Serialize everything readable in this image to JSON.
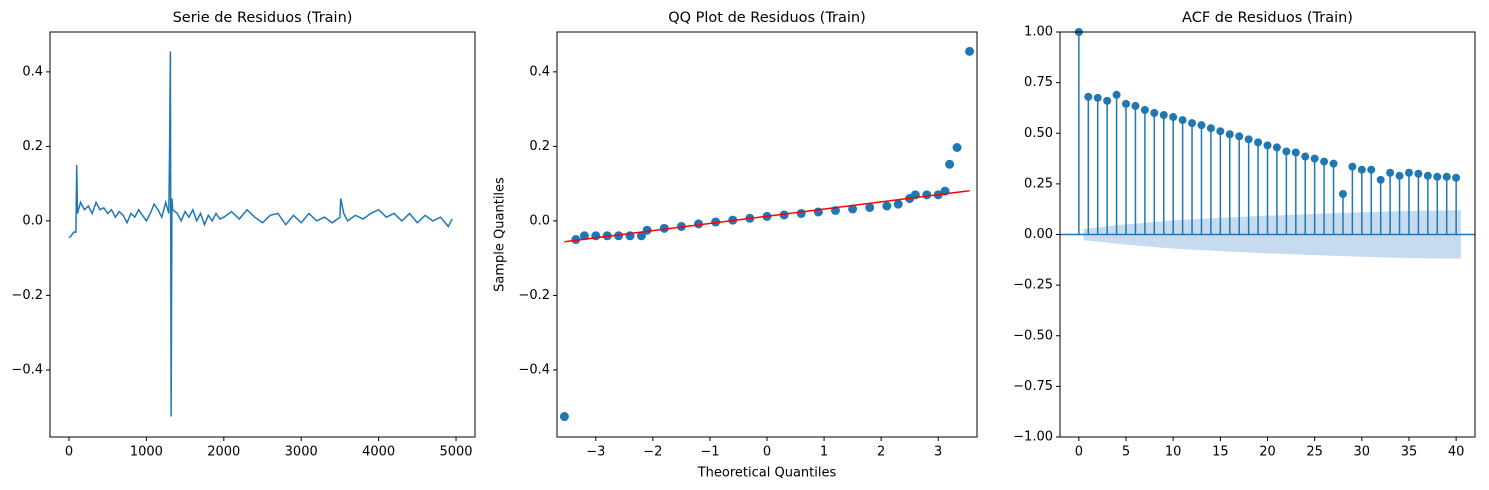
{
  "chart_data": [
    {
      "type": "line",
      "title": "Serie de Residuos (Train)",
      "color": "#1f77b4",
      "x": [
        0,
        30,
        60,
        90,
        100,
        110,
        150,
        200,
        250,
        300,
        350,
        400,
        450,
        500,
        550,
        600,
        650,
        700,
        750,
        800,
        850,
        900,
        950,
        1000,
        1050,
        1100,
        1150,
        1200,
        1250,
        1290,
        1300,
        1310,
        1320,
        1330,
        1340,
        1400,
        1450,
        1500,
        1550,
        1600,
        1650,
        1700,
        1750,
        1800,
        1850,
        1900,
        1950,
        2000,
        2100,
        2200,
        2300,
        2400,
        2500,
        2600,
        2700,
        2800,
        2900,
        3000,
        3100,
        3200,
        3300,
        3400,
        3500,
        3510,
        3550,
        3600,
        3700,
        3800,
        3900,
        4000,
        4100,
        4200,
        4300,
        4400,
        4500,
        4600,
        4700,
        4800,
        4900,
        4950
      ],
      "values": [
        -0.045,
        -0.04,
        -0.03,
        -0.03,
        0.15,
        0.02,
        0.05,
        0.03,
        0.04,
        0.02,
        0.05,
        0.03,
        0.035,
        0.02,
        0.03,
        0.01,
        0.025,
        0.015,
        -0.005,
        0.02,
        0.01,
        0.03,
        0.015,
        0,
        0.02,
        0.045,
        0.03,
        0.01,
        0.05,
        0.02,
        0.2,
        0.455,
        -0.525,
        0.06,
        0.03,
        0.02,
        0,
        0.025,
        0.01,
        0.03,
        0,
        0.02,
        -0.01,
        0.015,
        0,
        0.02,
        0.005,
        0.01,
        0.025,
        0.005,
        0.03,
        0.01,
        -0.005,
        0.015,
        0.02,
        -0.01,
        0.015,
        -0.005,
        0.02,
        0,
        0.01,
        -0.005,
        0.01,
        0.06,
        0.02,
        0,
        0.015,
        0.005,
        0.02,
        0.03,
        0.01,
        0.02,
        0,
        0.02,
        -0.005,
        0.015,
        0,
        0.01,
        -0.015,
        0.005
      ],
      "xlim": [
        -245,
        5245
      ],
      "ylim": [
        -0.58,
        0.507
      ],
      "xticks": [
        0,
        1000,
        2000,
        3000,
        4000,
        5000
      ],
      "yticks": [
        {
          "value": -0.4,
          "label": "−0.4"
        },
        {
          "value": -0.2,
          "label": "−0.2"
        },
        {
          "value": 0,
          "label": "0.0"
        },
        0.2,
        0.4
      ]
    },
    {
      "type": "scatter",
      "title": "QQ Plot de Residuos (Train)",
      "color": "#1f77b4",
      "xlabel": "Theoretical Quantiles",
      "ylabel": "Sample Quantiles",
      "x": [
        -3.55,
        -3.35,
        -3.2,
        -3.0,
        -2.8,
        -2.6,
        -2.4,
        -2.2,
        -2.1,
        -1.8,
        -1.5,
        -1.2,
        -0.9,
        -0.6,
        -0.3,
        0,
        0.3,
        0.6,
        0.9,
        1.2,
        1.5,
        1.8,
        2.1,
        2.3,
        2.5,
        2.6,
        2.8,
        3.0,
        3.12,
        3.2,
        3.33,
        3.55
      ],
      "values": [
        -0.525,
        -0.05,
        -0.04,
        -0.04,
        -0.04,
        -0.04,
        -0.04,
        -0.04,
        -0.025,
        -0.02,
        -0.015,
        -0.008,
        -0.003,
        0.002,
        0.007,
        0.012,
        0.016,
        0.02,
        0.024,
        0.028,
        0.032,
        0.036,
        0.04,
        0.045,
        0.06,
        0.07,
        0.07,
        0.07,
        0.08,
        0.152,
        0.197,
        0.455
      ],
      "reference_line": {
        "color": "#ff0000",
        "x": [
          -3.55,
          3.55
        ],
        "values": [
          -0.056,
          0.081
        ]
      },
      "xlim": [
        -3.68,
        3.68
      ],
      "ylim": [
        -0.58,
        0.507
      ],
      "xticks": [
        {
          "value": -3,
          "label": "−3"
        },
        {
          "value": -2,
          "label": "−2"
        },
        {
          "value": -1,
          "label": "−1"
        },
        0,
        1,
        2,
        3
      ],
      "yticks": [
        {
          "value": -0.4,
          "label": "−0.4"
        },
        {
          "value": -0.2,
          "label": "−0.2"
        },
        {
          "value": 0,
          "label": "0.0"
        },
        0.2,
        0.4
      ]
    },
    {
      "type": "stem",
      "title": "ACF de Residuos (Train)",
      "color": "#1f77b4",
      "x": [
        0,
        1,
        2,
        3,
        4,
        5,
        6,
        7,
        8,
        9,
        10,
        11,
        12,
        13,
        14,
        15,
        16,
        17,
        18,
        19,
        20,
        21,
        22,
        23,
        24,
        25,
        26,
        27,
        28,
        29,
        30,
        31,
        32,
        33,
        34,
        35,
        36,
        37,
        38,
        39,
        40
      ],
      "values": [
        1,
        0.68,
        0.675,
        0.66,
        0.69,
        0.645,
        0.635,
        0.615,
        0.6,
        0.59,
        0.58,
        0.565,
        0.55,
        0.54,
        0.525,
        0.51,
        0.495,
        0.485,
        0.47,
        0.455,
        0.44,
        0.43,
        0.41,
        0.405,
        0.385,
        0.375,
        0.36,
        0.35,
        0.2,
        0.335,
        0.32,
        0.32,
        0.27,
        0.305,
        0.29,
        0.305,
        0.3,
        0.29,
        0.285,
        0.285,
        0.28
      ],
      "band": {
        "color": "#c6dbef",
        "x": [
          0.5,
          1,
          2,
          3,
          5,
          10,
          15,
          20,
          25,
          30,
          35,
          40.5
        ],
        "upper": [
          0.028,
          0.03,
          0.035,
          0.04,
          0.05,
          0.07,
          0.082,
          0.093,
          0.102,
          0.11,
          0.116,
          0.12
        ],
        "lower": [
          -0.028,
          -0.03,
          -0.035,
          -0.04,
          -0.05,
          -0.07,
          -0.082,
          -0.093,
          -0.102,
          -0.11,
          -0.116,
          -0.12
        ]
      },
      "xlim": [
        -2,
        42
      ],
      "ylim": [
        -1,
        1
      ],
      "xticks": [
        0,
        5,
        10,
        15,
        20,
        25,
        30,
        35,
        40
      ],
      "yticks": [
        {
          "value": -1,
          "label": "−1.00"
        },
        {
          "value": -0.75,
          "label": "−0.75"
        },
        {
          "value": -0.5,
          "label": "−0.50"
        },
        {
          "value": -0.25,
          "label": "−0.25"
        },
        {
          "value": 0,
          "label": "0.00"
        },
        0.25,
        {
          "value": 0.5,
          "label": "0.50"
        },
        0.75,
        {
          "value": 1,
          "label": "1.00"
        }
      ]
    }
  ]
}
